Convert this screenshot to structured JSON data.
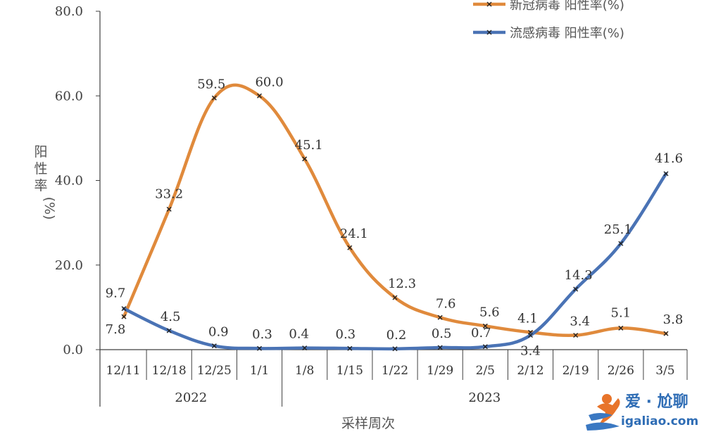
{
  "chart_data": {
    "type": "line",
    "title": "",
    "xlabel": "采样周次",
    "ylabel": "阳性率(%)",
    "ylim": [
      0,
      80
    ],
    "yticks": [
      "0.0",
      "20.0",
      "40.0",
      "60.0",
      "80.0"
    ],
    "categories": [
      "12/11",
      "12/18",
      "12/25",
      "1/1",
      "1/8",
      "1/15",
      "1/22",
      "1/29",
      "2/5",
      "2/12",
      "2/19",
      "2/26",
      "3/5"
    ],
    "year_groups": [
      {
        "label": "2022",
        "span": 4
      },
      {
        "label": "2023",
        "span": 9
      }
    ],
    "series": [
      {
        "name": "新冠病毒 阳性率(%)",
        "color": "#E08A3C",
        "values": [
          7.8,
          33.2,
          59.5,
          60.0,
          45.1,
          24.1,
          12.3,
          7.6,
          5.6,
          4.1,
          3.4,
          5.1,
          3.8
        ],
        "labels": [
          "7.8",
          "33.2",
          "59.5",
          "60.0",
          "45.1",
          "24.1",
          "12.3",
          "7.6",
          "5.6",
          "4.1",
          "3.4",
          "5.1",
          "3.8"
        ]
      },
      {
        "name": "流感病毒 阳性率(%)",
        "color": "#4A73B5",
        "values": [
          9.7,
          4.5,
          0.9,
          0.3,
          0.4,
          0.3,
          0.2,
          0.5,
          0.7,
          3.4,
          14.3,
          25.1,
          41.6
        ],
        "labels": [
          "9.7",
          "4.5",
          "0.9",
          "0.3",
          "0.4",
          "0.3",
          "0.2",
          "0.5",
          "0.7",
          "3.4",
          "14.3",
          "25.1",
          "41.6"
        ]
      }
    ],
    "grid": false,
    "legend": "top-right"
  },
  "watermark": {
    "brand": "爱 · 尬聊",
    "url": "igaliao.com"
  }
}
